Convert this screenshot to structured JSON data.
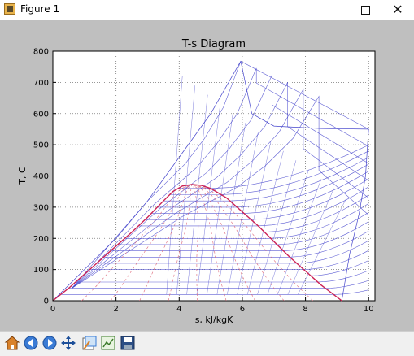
{
  "window": {
    "title": "Figure 1",
    "minimize_label": "",
    "maximize_label": "",
    "close_label": "✕"
  },
  "toolbar": {
    "items": [
      {
        "name": "home-icon"
      },
      {
        "name": "back-icon"
      },
      {
        "name": "forward-icon"
      },
      {
        "name": "pan-icon"
      },
      {
        "name": "zoom-icon"
      },
      {
        "name": "subplots-icon"
      },
      {
        "name": "save-icon"
      }
    ]
  },
  "chart_data": {
    "type": "line",
    "title": "T-s Diagram",
    "xlabel": "s, kJ/kgK",
    "ylabel": "T, C",
    "xlim": [
      0,
      10.2
    ],
    "ylim": [
      0,
      800
    ],
    "xticks": [
      "0",
      "2",
      "4",
      "6",
      "8",
      "10"
    ],
    "yticks": [
      "0",
      "100",
      "200",
      "300",
      "400",
      "500",
      "600",
      "700",
      "800"
    ],
    "grid": true,
    "colors": {
      "saturation": "#cc2255",
      "mesh": "#4444cc",
      "dashed": "#dd6677",
      "background": "#ffffff"
    },
    "saturation_liquid": [
      [
        0,
        0
      ],
      [
        0.5,
        40
      ],
      [
        1.0,
        85
      ],
      [
        1.5,
        130
      ],
      [
        2.0,
        175
      ],
      [
        2.5,
        220
      ],
      [
        3.0,
        268
      ],
      [
        3.5,
        320
      ],
      [
        3.8,
        350
      ],
      [
        4.1,
        368
      ],
      [
        4.4,
        373
      ]
    ],
    "saturation_vapor": [
      [
        4.4,
        373
      ],
      [
        4.7,
        370
      ],
      [
        5.0,
        360
      ],
      [
        5.5,
        330
      ],
      [
        6.0,
        285
      ],
      [
        6.5,
        240
      ],
      [
        7.0,
        190
      ],
      [
        7.5,
        140
      ],
      [
        8.0,
        95
      ],
      [
        8.5,
        50
      ],
      [
        9.15,
        0
      ]
    ],
    "critical_point": [
      4.4,
      373
    ],
    "peak_point": [
      5.95,
      768
    ],
    "superheat_end": [
      10.0,
      550
    ]
  }
}
